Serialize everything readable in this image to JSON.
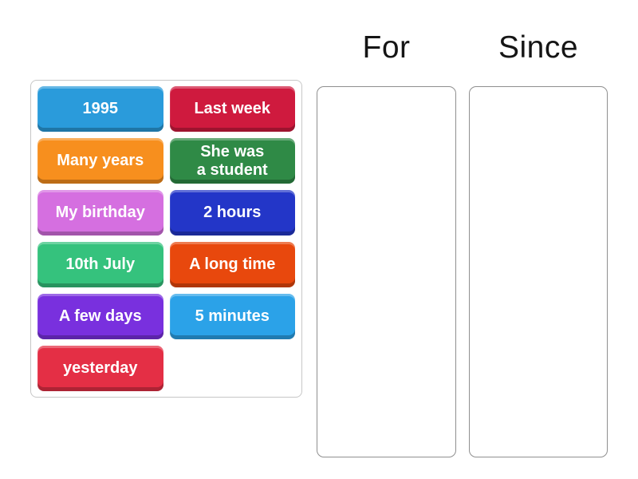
{
  "board": {
    "groups": [
      {
        "label": "For"
      },
      {
        "label": "Since"
      }
    ],
    "tiles": [
      {
        "label": "1995",
        "color": "#2a9bdb"
      },
      {
        "label": "Last week",
        "color": "#cf1a3e"
      },
      {
        "label": "Many years",
        "color": "#f78f1e"
      },
      {
        "label": "She was\na student",
        "color": "#2f8a46"
      },
      {
        "label": "My birthday",
        "color": "#d56fe0"
      },
      {
        "label": "2 hours",
        "color": "#2336c8"
      },
      {
        "label": "10th July",
        "color": "#35c27d"
      },
      {
        "label": "A long time",
        "color": "#e8480d"
      },
      {
        "label": "A few days",
        "color": "#7930de"
      },
      {
        "label": "5 minutes",
        "color": "#2ba2e8"
      },
      {
        "label": "yesterday",
        "color": "#e42f45"
      }
    ]
  }
}
